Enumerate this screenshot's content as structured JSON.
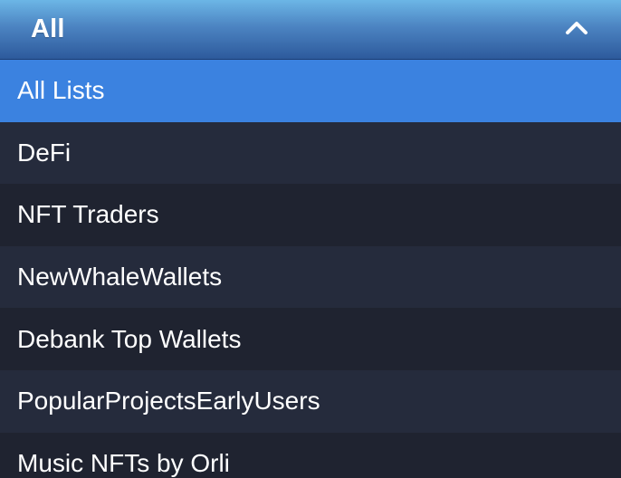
{
  "dropdown": {
    "selected_label": "All",
    "toggle_icon": "chevron-up-icon",
    "colors": {
      "header_top": "#6cb6e6",
      "header_bottom": "#2d5a9c",
      "selected_bg": "#3b82e0",
      "row_bg_a": "#252b3c",
      "row_bg_b": "#1f2330",
      "text": "#ffffff"
    },
    "options": [
      {
        "label": "All Lists",
        "selected": true
      },
      {
        "label": "DeFi",
        "selected": false
      },
      {
        "label": "NFT Traders",
        "selected": false
      },
      {
        "label": "NewWhaleWallets",
        "selected": false
      },
      {
        "label": "Debank Top Wallets",
        "selected": false
      },
      {
        "label": "PopularProjectsEarlyUsers",
        "selected": false
      },
      {
        "label": "Music NFTs by Orli",
        "selected": false
      }
    ]
  }
}
